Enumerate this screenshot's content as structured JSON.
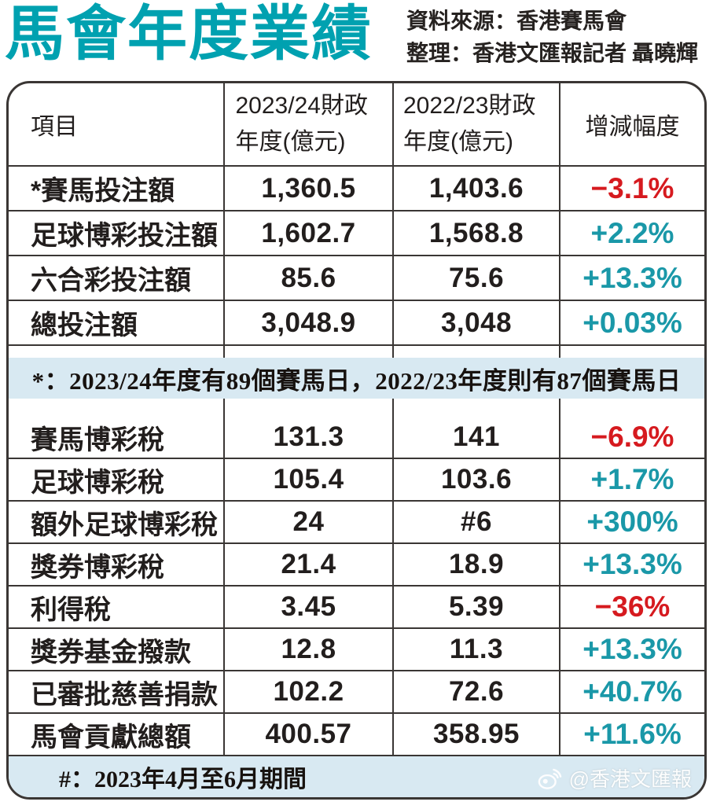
{
  "page": {
    "source_line1": "資料來源：香港賽馬會",
    "source_line2": "整理：香港文匯報記者 聶曉輝"
  },
  "colors": {
    "accent_teal": "#00a1b0",
    "positive_teal": "#1a98a8",
    "negative_red": "#d61a1f",
    "note_band_blue": "#d8e9f2",
    "line_dark": "#3a3634"
  },
  "chart_data": {
    "type": "table",
    "title": "馬會年度業績",
    "columns": [
      "項目",
      "2023/24財政年度(億元)",
      "2022/23財政年度(億元)",
      "增減幅度"
    ],
    "sections": [
      {
        "rows": [
          {
            "item": "*賽馬投注額",
            "fy2024": "1,360.5",
            "fy2023": "1,403.6",
            "change": "−3.1%"
          },
          {
            "item": "足球博彩投注額",
            "fy2024": "1,602.7",
            "fy2023": "1,568.8",
            "change": "+2.2%"
          },
          {
            "item": "六合彩投注額",
            "fy2024": "85.6",
            "fy2023": "75.6",
            "change": "+13.3%"
          },
          {
            "item": "總投注額",
            "fy2024": "3,048.9",
            "fy2023": "3,048",
            "change": "+0.03%"
          }
        ],
        "note": "*：2023/24年度有89個賽馬日，2022/23年度則有87個賽馬日"
      },
      {
        "rows": [
          {
            "item": "賽馬博彩稅",
            "fy2024": "131.3",
            "fy2023": "141",
            "change": "−6.9%"
          },
          {
            "item": "足球博彩稅",
            "fy2024": "105.4",
            "fy2023": "103.6",
            "change": "+1.7%"
          },
          {
            "item": "額外足球博彩稅",
            "fy2024": "24",
            "fy2023": "#6",
            "change": "+300%"
          },
          {
            "item": "獎券博彩稅",
            "fy2024": "21.4",
            "fy2023": "18.9",
            "change": "+13.3%"
          },
          {
            "item": "利得稅",
            "fy2024": "3.45",
            "fy2023": "5.39",
            "change": "−36%"
          },
          {
            "item": "獎券基金撥款",
            "fy2024": "12.8",
            "fy2023": "11.3",
            "change": "+13.3%"
          },
          {
            "item": "已審批慈善捐款",
            "fy2024": "102.2",
            "fy2023": "72.6",
            "change": "+40.7%"
          },
          {
            "item": "馬會貢獻總額",
            "fy2024": "400.57",
            "fy2023": "358.95",
            "change": "+11.6%"
          }
        ],
        "note": "#：2023年4月至6月期間"
      }
    ]
  },
  "watermark": {
    "handle": "@香港文匯報",
    "icon": "weibo-icon"
  }
}
